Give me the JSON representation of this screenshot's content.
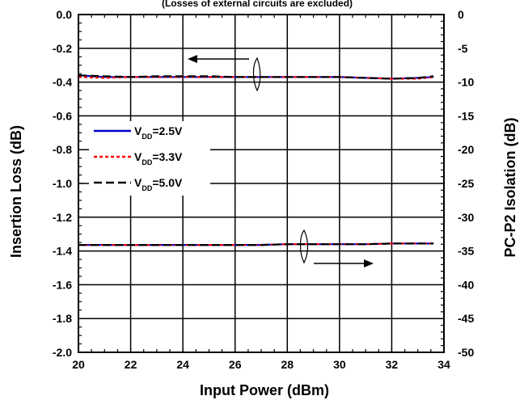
{
  "chart_data": {
    "type": "line",
    "note": "(Losses of external circuits are excluded)",
    "xlabel": "Input Power  (dBm)",
    "ylabel_left": "Insertion Loss  (dB)",
    "ylabel_right": "PC-P2 Isolation  (dB)",
    "xlim": [
      20,
      34
    ],
    "ylim_left": [
      -2.0,
      0.0
    ],
    "ylim_right": [
      -50,
      0
    ],
    "x_ticks": [
      "20",
      "22",
      "24",
      "26",
      "28",
      "30",
      "32",
      "34"
    ],
    "y_ticks_left": [
      "0.0",
      "-0.2",
      "-0.4",
      "-0.6",
      "-0.8",
      "-1.0",
      "-1.2",
      "-1.4",
      "-1.6",
      "-1.8",
      "-2.0"
    ],
    "y_ticks_right": [
      "0",
      "-5",
      "-10",
      "-15",
      "-20",
      "-25",
      "-30",
      "-35",
      "-40",
      "-45",
      "-50"
    ],
    "grid": true,
    "legend_position": "left",
    "legend": [
      {
        "prefix": "V",
        "sub": "DD",
        "suffix": "=2.5V",
        "color": "#0000cc",
        "dash": "solid"
      },
      {
        "prefix": "V",
        "sub": "DD",
        "suffix": "=3.3V",
        "color": "#ff0000",
        "dash": "dotted"
      },
      {
        "prefix": "V",
        "sub": "DD",
        "suffix": "=5.0V",
        "color": "#000000",
        "dash": "dashed"
      }
    ],
    "x": [
      20,
      21,
      22,
      23,
      24,
      25,
      26,
      27,
      28,
      29,
      30,
      31,
      32,
      33,
      33.6
    ],
    "series": [
      {
        "group": "insertion_loss",
        "axis": "left",
        "name": "VDD=2.5V",
        "color": "#0000cc",
        "dash": "solid",
        "values": [
          -0.36,
          -0.37,
          -0.37,
          -0.37,
          -0.37,
          -0.37,
          -0.37,
          -0.37,
          -0.37,
          -0.37,
          -0.37,
          -0.375,
          -0.38,
          -0.375,
          -0.37
        ]
      },
      {
        "group": "insertion_loss",
        "axis": "left",
        "name": "VDD=3.3V",
        "color": "#ff0000",
        "dash": "dotted",
        "values": [
          -0.37,
          -0.375,
          -0.37,
          -0.37,
          -0.37,
          -0.37,
          -0.37,
          -0.37,
          -0.37,
          -0.37,
          -0.37,
          -0.375,
          -0.38,
          -0.38,
          -0.37
        ]
      },
      {
        "group": "insertion_loss",
        "axis": "left",
        "name": "VDD=5.0V",
        "color": "#000000",
        "dash": "dashed",
        "values": [
          -0.36,
          -0.365,
          -0.37,
          -0.365,
          -0.365,
          -0.365,
          -0.37,
          -0.37,
          -0.37,
          -0.37,
          -0.37,
          -0.375,
          -0.38,
          -0.375,
          -0.365
        ]
      },
      {
        "group": "isolation",
        "axis": "right",
        "name": "VDD=2.5V",
        "color": "#0000cc",
        "dash": "solid",
        "values": [
          -34.1,
          -34.1,
          -34.1,
          -34.1,
          -34.1,
          -34.1,
          -34.1,
          -34.1,
          -34.0,
          -34.0,
          -34.0,
          -34.0,
          -33.9,
          -33.9,
          -33.9
        ]
      },
      {
        "group": "isolation",
        "axis": "right",
        "name": "VDD=3.3V",
        "color": "#ff0000",
        "dash": "dotted",
        "values": [
          -34.1,
          -34.1,
          -34.1,
          -34.1,
          -34.1,
          -34.1,
          -34.1,
          -34.1,
          -34.0,
          -34.0,
          -34.0,
          -34.0,
          -33.9,
          -33.9,
          -33.9
        ]
      },
      {
        "group": "isolation",
        "axis": "right",
        "name": "VDD=5.0V",
        "color": "#000000",
        "dash": "dashed",
        "values": [
          -34.1,
          -34.1,
          -34.1,
          -34.1,
          -34.1,
          -34.1,
          -34.1,
          -34.1,
          -34.0,
          -34.0,
          -34.0,
          -34.0,
          -33.9,
          -33.9,
          -33.9
        ]
      }
    ]
  }
}
